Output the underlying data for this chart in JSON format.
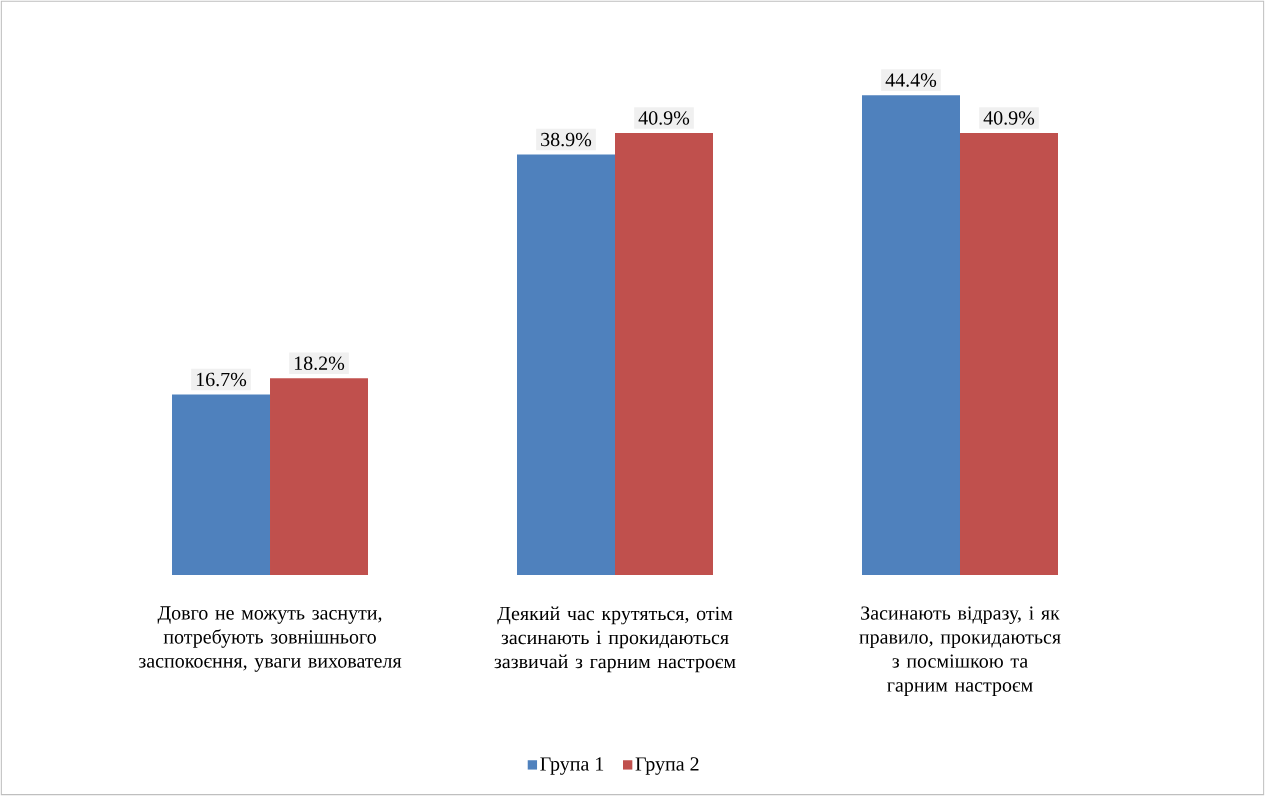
{
  "chart_data": {
    "type": "bar",
    "categories": [
      "Довго не можуть заснути, потребують зовнішнього заспокоєння, уваги вихователя",
      "Деякий час крутяться, отім засинають і прокидаються зазвичай з гарним настроєм",
      "Засинають відразу, і як правило, прокидаються з посмішкою та гарним настроєм"
    ],
    "series": [
      {
        "name": "Група 1",
        "color": "#4f81bd",
        "values": [
          16.7,
          38.9,
          44.4
        ],
        "value_labels": [
          "16.7%",
          "38.9%",
          "44.4%"
        ]
      },
      {
        "name": "Група 2",
        "color": "#c0504d",
        "values": [
          18.2,
          40.9,
          40.9
        ],
        "value_labels": [
          "18.2%",
          "40.9%",
          "40.9%"
        ]
      }
    ],
    "legend": "bottom"
  }
}
